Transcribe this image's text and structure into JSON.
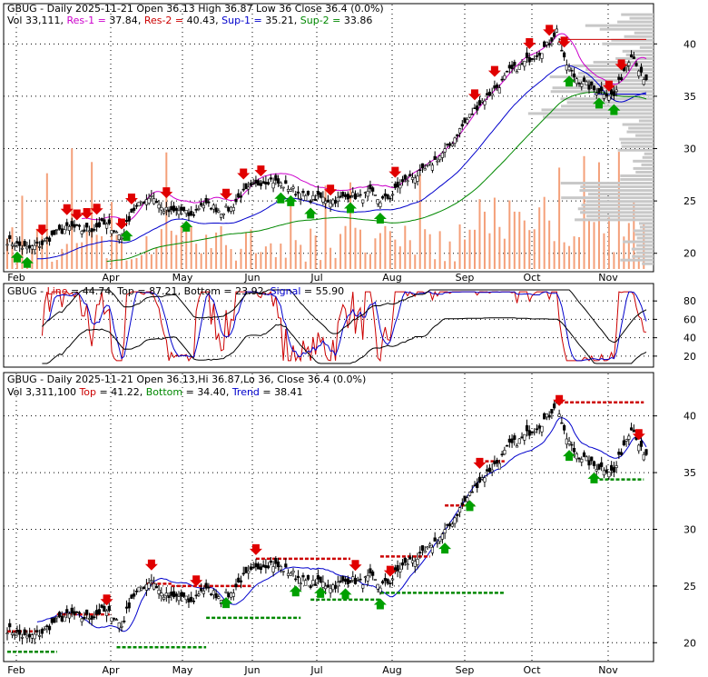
{
  "chart_data": [
    {
      "type": "candlestick",
      "panel": "price-volume",
      "title": {
        "ticker": "GBUG",
        "period": "Daily",
        "date": "2025-11-21",
        "open": "36.13",
        "high": "36.87",
        "low": "36",
        "close": "36.4",
        "change": "(0.0%)"
      },
      "legend": [
        {
          "label": "Vol",
          "value": "33,111",
          "color": "#000000"
        },
        {
          "label": "Res-1",
          "value": "37.84",
          "color": "#cc00cc"
        },
        {
          "label": "Res-2",
          "value": "40.43",
          "color": "#cc0000"
        },
        {
          "label": "Sup-1",
          "value": "35.21",
          "color": "#0000cc"
        },
        {
          "label": "Sup-2",
          "value": "33.86",
          "color": "#008800"
        }
      ],
      "x_tick_labels": [
        "Feb",
        "Apr",
        "May",
        "Jun",
        "Jul",
        "Aug",
        "Sep",
        "Oct",
        "Nov"
      ],
      "y_tick_labels": [
        "40",
        "35",
        "30",
        "25",
        "20"
      ],
      "ylim": [
        18.5,
        43.5
      ],
      "close_anchors": [
        [
          0,
          21.2
        ],
        [
          8,
          20.4
        ],
        [
          14,
          20.9
        ],
        [
          20,
          22.0
        ],
        [
          26,
          22.5
        ],
        [
          30,
          22.2
        ],
        [
          34,
          22.3
        ],
        [
          38,
          22.8
        ],
        [
          42,
          22.5
        ],
        [
          46,
          21.5
        ],
        [
          50,
          24.0
        ],
        [
          54,
          24.8
        ],
        [
          58,
          25.6
        ],
        [
          62,
          24.3
        ],
        [
          66,
          23.9
        ],
        [
          70,
          24.1
        ],
        [
          74,
          23.5
        ],
        [
          78,
          24.7
        ],
        [
          82,
          24.5
        ],
        [
          86,
          24.0
        ],
        [
          90,
          24.3
        ],
        [
          94,
          25.6
        ],
        [
          98,
          26.2
        ],
        [
          102,
          26.8
        ],
        [
          106,
          27.0
        ],
        [
          110,
          26.6
        ],
        [
          114,
          26.2
        ],
        [
          118,
          25.6
        ],
        [
          122,
          25.2
        ],
        [
          126,
          25.3
        ],
        [
          130,
          25.0
        ],
        [
          134,
          25.2
        ],
        [
          138,
          25.6
        ],
        [
          142,
          25.3
        ],
        [
          146,
          25.8
        ],
        [
          150,
          25.0
        ],
        [
          154,
          25.4
        ],
        [
          158,
          26.6
        ],
        [
          162,
          27.2
        ],
        [
          166,
          27.6
        ],
        [
          170,
          28.4
        ],
        [
          174,
          29.3
        ],
        [
          178,
          30.3
        ],
        [
          182,
          31.8
        ],
        [
          186,
          33.1
        ],
        [
          190,
          34.3
        ],
        [
          194,
          35.2
        ],
        [
          198,
          36.1
        ],
        [
          202,
          37.4
        ],
        [
          206,
          37.8
        ],
        [
          210,
          38.6
        ],
        [
          214,
          39.2
        ],
        [
          218,
          40.1
        ],
        [
          221,
          41.3
        ],
        [
          224,
          38.4
        ],
        [
          228,
          36.9
        ],
        [
          232,
          36.2
        ],
        [
          236,
          35.6
        ],
        [
          240,
          35.4
        ],
        [
          244,
          35.0
        ],
        [
          248,
          37.5
        ],
        [
          251,
          39.1
        ],
        [
          253,
          38.2
        ],
        [
          256,
          36.4
        ]
      ],
      "resistance_1": {
        "value": "37.84",
        "from_bar": 222
      },
      "resistance_2": {
        "value": "40.43",
        "from_bar": 222
      },
      "support_1": {
        "value": "35.21",
        "from_bar": 236
      },
      "support_2": {
        "value": "33.86",
        "from_bar": 236
      },
      "volume_profile": "horizontal bars at right edge",
      "grid": true
    },
    {
      "type": "line",
      "panel": "stochastic",
      "legend": [
        {
          "label": "GBUG",
          "value": "",
          "color": "#000000"
        },
        {
          "label": "Line",
          "value": "44.74",
          "color": "#cc0000"
        },
        {
          "label": "Top",
          "value": "87.21",
          "color": "#000000"
        },
        {
          "label": "Bottom",
          "value": "23.92",
          "color": "#000000"
        },
        {
          "label": "Signal",
          "value": "55.90",
          "color": "#0000cc"
        }
      ],
      "y_tick_labels": [
        "80",
        "60",
        "40",
        "20"
      ],
      "ylim": [
        10,
        95
      ]
    },
    {
      "type": "candlestick",
      "panel": "price-trend",
      "title": {
        "ticker": "GBUG",
        "period": "Daily",
        "date": "2025-11-21",
        "open": "36.13",
        "high": "36.87",
        "low": "36",
        "close": "36.4",
        "change": "(0.0%)"
      },
      "legend": [
        {
          "label": "Vol",
          "value": "3,311,100",
          "color": "#000000"
        },
        {
          "label": "Top",
          "value": "41.22",
          "color": "#cc0000"
        },
        {
          "label": "Bottom",
          "value": "34.40",
          "color": "#008800"
        },
        {
          "label": "Trend",
          "value": "38.41",
          "color": "#0000cc"
        }
      ],
      "x_tick_labels": [
        "Feb",
        "Apr",
        "May",
        "Jun",
        "Jul",
        "Aug",
        "Sep",
        "Oct",
        "Nov"
      ],
      "y_tick_labels": [
        "40",
        "35",
        "30",
        "25",
        "20"
      ],
      "ylim": [
        18.5,
        43.5
      ],
      "grid": true
    }
  ],
  "colors": {
    "up": "#000000",
    "down": "#000000",
    "volume": "#f4a07a",
    "profile": "#c8c8c8",
    "res1": "#cc00cc",
    "res2": "#cc0000",
    "sup1": "#0000cc",
    "sup2": "#008800",
    "arrow_down": "#e00000",
    "arrow_up": "#00a000"
  }
}
